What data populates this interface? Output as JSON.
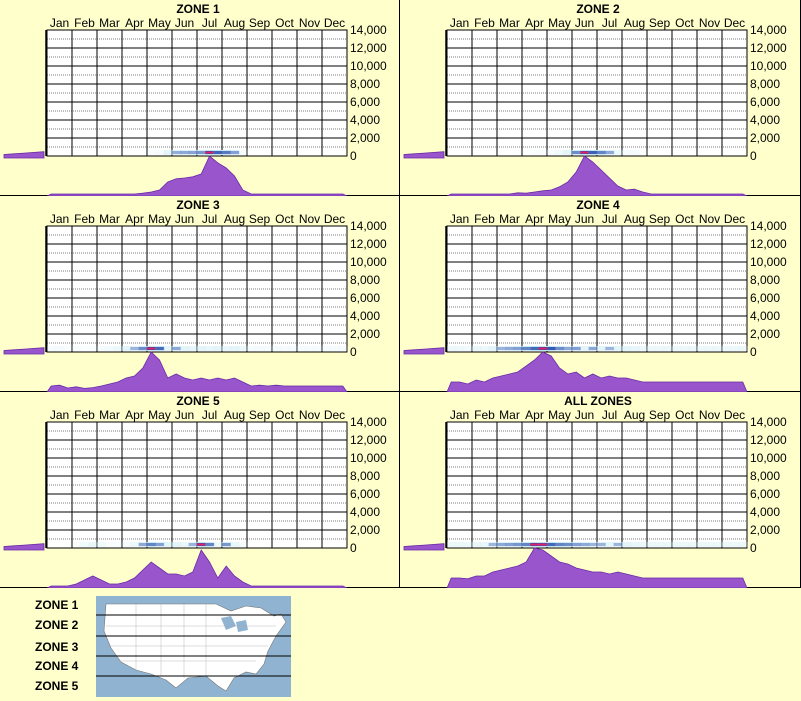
{
  "months": [
    "Jan",
    "Feb",
    "Mar",
    "Apr",
    "May",
    "Jun",
    "Jul",
    "Aug",
    "Sep",
    "Oct",
    "Nov",
    "Dec"
  ],
  "y_tick_labels": [
    "14,000",
    "12,000",
    "10,000",
    "8,000",
    "6,000",
    "4,000",
    "2,000",
    "0"
  ],
  "colors": {
    "background": "#ffffcc",
    "profile": "#9955cc",
    "profile_edge": "#6a2aa8",
    "grid": "#000000",
    "map_water": "#8fb3d1",
    "map_land": "#ffffff"
  },
  "chart_data": [
    {
      "type": "heatmap",
      "title": "ZONE 1",
      "xlabel": "",
      "ylabel": "",
      "x_categories": [
        "Jan",
        "Feb",
        "Mar",
        "Apr",
        "May",
        "Jun",
        "Jul",
        "Aug",
        "Sep",
        "Oct",
        "Nov",
        "Dec"
      ],
      "ylim": [
        0,
        14000
      ],
      "seasonal_profile": [
        0,
        0,
        0,
        0,
        0,
        0,
        0,
        0,
        0,
        0,
        0,
        0.02,
        0.05,
        0.1,
        0.3,
        0.38,
        0.4,
        0.43,
        0.5,
        0.95,
        0.78,
        0.65,
        0.45,
        0.1,
        0,
        0,
        0,
        0,
        0,
        0,
        0,
        0,
        0,
        0,
        0,
        0
      ],
      "elevation_side": [
        0.25,
        0.3,
        0.35,
        0.4,
        0.45
      ]
    },
    {
      "type": "heatmap",
      "title": "ZONE 2",
      "xlabel": "",
      "ylabel": "",
      "x_categories": [
        "Jan",
        "Feb",
        "Mar",
        "Apr",
        "May",
        "Jun",
        "Jul",
        "Aug",
        "Sep",
        "Oct",
        "Nov",
        "Dec"
      ],
      "ylim": [
        0,
        14000
      ],
      "seasonal_profile": [
        0,
        0,
        0,
        0,
        0,
        0,
        0,
        0,
        0.03,
        0.02,
        0.05,
        0.08,
        0.1,
        0.18,
        0.3,
        0.55,
        0.95,
        0.8,
        0.6,
        0.4,
        0.2,
        0.1,
        0.12,
        0.05,
        0,
        0,
        0,
        0,
        0,
        0,
        0,
        0,
        0,
        0,
        0,
        0
      ],
      "elevation_side": [
        0.25,
        0.3,
        0.35,
        0.4,
        0.45
      ]
    },
    {
      "type": "heatmap",
      "title": "ZONE 3",
      "xlabel": "",
      "ylabel": "",
      "x_categories": [
        "Jan",
        "Feb",
        "Mar",
        "Apr",
        "May",
        "Jun",
        "Jul",
        "Aug",
        "Sep",
        "Oct",
        "Nov",
        "Dec"
      ],
      "ylim": [
        0,
        14000
      ],
      "seasonal_profile": [
        0.1,
        0.12,
        0.05,
        0.08,
        0.04,
        0.06,
        0.1,
        0.15,
        0.2,
        0.3,
        0.35,
        0.55,
        0.95,
        0.75,
        0.3,
        0.4,
        0.3,
        0.25,
        0.3,
        0.25,
        0.3,
        0.25,
        0.3,
        0.2,
        0.1,
        0.12,
        0.1,
        0.12,
        0.1,
        0.1,
        0.1,
        0.1,
        0.1,
        0.1,
        0.1,
        0.1
      ],
      "elevation_side": [
        0.25,
        0.3,
        0.35,
        0.4,
        0.45
      ]
    },
    {
      "type": "heatmap",
      "title": "ZONE 4",
      "xlabel": "",
      "ylabel": "",
      "x_categories": [
        "Jan",
        "Feb",
        "Mar",
        "Apr",
        "May",
        "Jun",
        "Jul",
        "Aug",
        "Sep",
        "Oct",
        "Nov",
        "Dec"
      ],
      "ylim": [
        0,
        14000
      ],
      "seasonal_profile": [
        0.2,
        0.2,
        0.15,
        0.25,
        0.2,
        0.3,
        0.35,
        0.4,
        0.45,
        0.6,
        0.75,
        0.95,
        0.85,
        0.55,
        0.4,
        0.45,
        0.3,
        0.4,
        0.3,
        0.35,
        0.3,
        0.3,
        0.25,
        0.2,
        0.2,
        0.2,
        0.2,
        0.2,
        0.2,
        0.2,
        0.2,
        0.2,
        0.2,
        0.2,
        0.2,
        0.2
      ],
      "elevation_side": [
        0.25,
        0.3,
        0.35,
        0.4,
        0.45
      ]
    },
    {
      "type": "heatmap",
      "title": "ZONE 5",
      "xlabel": "",
      "ylabel": "",
      "x_categories": [
        "Jan",
        "Feb",
        "Mar",
        "Apr",
        "May",
        "Jun",
        "Jul",
        "Aug",
        "Sep",
        "Oct",
        "Nov",
        "Dec"
      ],
      "ylim": [
        0,
        14000
      ],
      "seasonal_profile": [
        0,
        0,
        0,
        0.05,
        0.15,
        0.25,
        0.15,
        0.05,
        0.05,
        0.1,
        0.2,
        0.4,
        0.6,
        0.45,
        0.3,
        0.3,
        0.25,
        0.35,
        0.9,
        0.6,
        0.2,
        0.5,
        0.25,
        0.1,
        0,
        0,
        0,
        0,
        0,
        0,
        0,
        0,
        0,
        0,
        0,
        0
      ],
      "elevation_side": [
        0.25,
        0.3,
        0.35,
        0.4,
        0.45
      ]
    },
    {
      "type": "heatmap",
      "title": "ALL ZONES",
      "xlabel": "",
      "ylabel": "",
      "x_categories": [
        "Jan",
        "Feb",
        "Mar",
        "Apr",
        "May",
        "Jun",
        "Jul",
        "Aug",
        "Sep",
        "Oct",
        "Nov",
        "Dec"
      ],
      "ylim": [
        0,
        14000
      ],
      "seasonal_profile": [
        0.2,
        0.2,
        0.18,
        0.25,
        0.25,
        0.35,
        0.4,
        0.45,
        0.5,
        0.6,
        0.95,
        0.9,
        0.75,
        0.6,
        0.55,
        0.45,
        0.4,
        0.35,
        0.35,
        0.3,
        0.35,
        0.3,
        0.25,
        0.2,
        0.2,
        0.2,
        0.2,
        0.2,
        0.2,
        0.2,
        0.2,
        0.2,
        0.2,
        0.2,
        0.2,
        0.2
      ],
      "elevation_side": [
        0.25,
        0.3,
        0.35,
        0.4,
        0.45
      ]
    }
  ],
  "zone_legend": [
    "ZONE 1",
    "ZONE 2",
    "ZONE 3",
    "ZONE 4",
    "ZONE 5"
  ]
}
